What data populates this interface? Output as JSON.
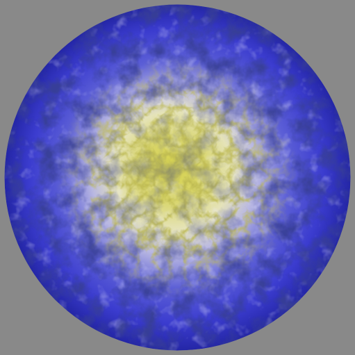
{
  "scene": {
    "subject": "textured-sphere",
    "colors": {
      "background": "#898989",
      "outer_blue": "#3b3ccf",
      "deep_blue": "#0c0f52",
      "mid_lavender": "#a7a7e0",
      "pale_cream": "#e9e7c7",
      "core_yellow": "#d6d24d",
      "core_olive": "#8f8a22"
    }
  }
}
